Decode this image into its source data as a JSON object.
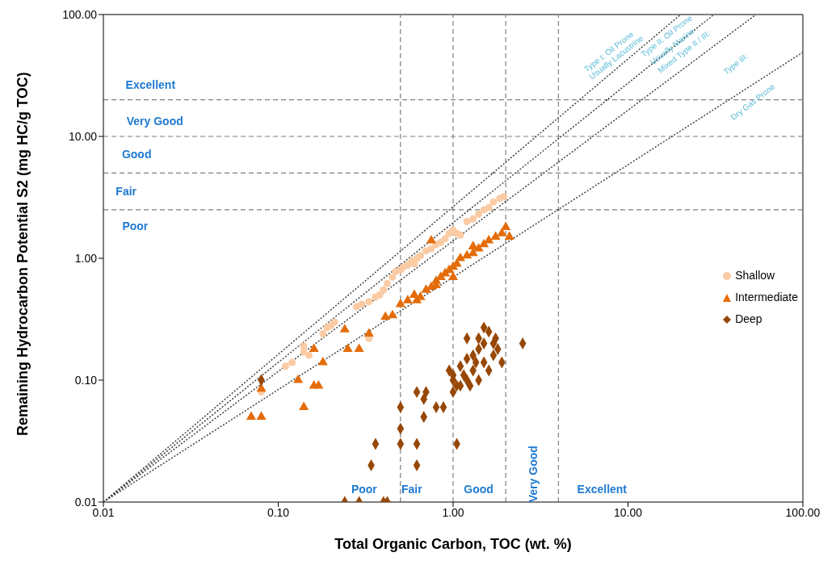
{
  "chart_data": {
    "type": "scatter",
    "xlabel": "Total Organic Carbon, TOC (wt. %)",
    "ylabel": "Remaining Hydrocarbon Potential S2 (mg HC/g TOC)",
    "log": "xy",
    "legend": "right",
    "xlim": [
      0.01,
      100
    ],
    "ylim": [
      0.01,
      100
    ],
    "xticks": [
      {
        "value": 0.01,
        "label": "0.01"
      },
      {
        "value": 0.1,
        "label": "0.10"
      },
      {
        "value": 1,
        "label": "1.00"
      },
      {
        "value": 10,
        "label": "10.00"
      },
      {
        "value": 100,
        "label": "100.00"
      }
    ],
    "yticks": [
      {
        "value": 0.01,
        "label": "0.01"
      },
      {
        "value": 0.1,
        "label": "0.10"
      },
      {
        "value": 1,
        "label": "1.00"
      },
      {
        "value": 10,
        "label": "10.00"
      },
      {
        "value": 100,
        "label": "100.00"
      }
    ],
    "series": [
      {
        "type": "line",
        "color": "#404040",
        "line_style": "dotted",
        "marker": "none",
        "x": [
          0.01,
          20
        ],
        "values": [
          0.01,
          100
        ]
      },
      {
        "type": "line",
        "color": "#404040",
        "line_style": "dotted",
        "marker": "none",
        "x": [
          0.01,
          31
        ],
        "values": [
          0.01,
          100
        ]
      },
      {
        "type": "line",
        "color": "#404040",
        "line_style": "dotted",
        "marker": "none",
        "x": [
          0.01,
          54
        ],
        "values": [
          0.01,
          100
        ]
      },
      {
        "type": "line",
        "color": "#404040",
        "line_style": "dotted",
        "marker": "none",
        "x": [
          0.01,
          100
        ],
        "values": [
          0.01,
          49
        ]
      },
      {
        "name": "Shallow",
        "color": "#fbcba4",
        "marker": "circle",
        "x": [
          0.08,
          0.11,
          0.12,
          0.14,
          0.14,
          0.15,
          0.18,
          0.19,
          0.2,
          0.21,
          0.33,
          0.28,
          0.3,
          0.33,
          0.36,
          0.38,
          0.4,
          0.42,
          0.45,
          0.47,
          0.5,
          0.52,
          0.55,
          0.58,
          0.6,
          0.62,
          0.65,
          0.7,
          0.75,
          0.8,
          0.85,
          0.9,
          0.95,
          1.0,
          1.05,
          1.1,
          1.2,
          1.3,
          1.4,
          1.5,
          1.6,
          1.7,
          1.85,
          1.95
        ],
        "values": [
          0.08,
          0.13,
          0.14,
          0.17,
          0.19,
          0.16,
          0.24,
          0.27,
          0.28,
          0.3,
          0.22,
          0.4,
          0.42,
          0.44,
          0.48,
          0.5,
          0.55,
          0.62,
          0.7,
          0.78,
          0.8,
          0.85,
          0.88,
          0.95,
          0.9,
          1.0,
          1.05,
          1.15,
          1.2,
          1.3,
          1.35,
          1.45,
          1.6,
          1.7,
          1.6,
          1.55,
          2.0,
          2.1,
          2.3,
          2.5,
          2.6,
          2.9,
          3.1,
          3.2
        ]
      },
      {
        "name": "Intermediate",
        "color": "#e46c0a",
        "marker": "triangle",
        "x": [
          0.07,
          0.08,
          0.08,
          0.13,
          0.14,
          0.16,
          0.17,
          0.16,
          0.18,
          0.24,
          0.25,
          0.29,
          0.33,
          0.41,
          0.45,
          0.5,
          0.55,
          0.6,
          0.62,
          0.65,
          0.7,
          0.75,
          0.8,
          0.85,
          0.9,
          0.95,
          1.0,
          1.05,
          1.1,
          1.2,
          1.3,
          1.4,
          1.5,
          1.6,
          1.75,
          1.9,
          2.0,
          2.1,
          0.75,
          1.0,
          0.8,
          1.3
        ],
        "values": [
          0.05,
          0.05,
          0.085,
          0.1,
          0.06,
          0.09,
          0.09,
          0.18,
          0.14,
          0.26,
          0.18,
          0.18,
          0.24,
          0.33,
          0.34,
          0.42,
          0.45,
          0.5,
          0.45,
          0.48,
          0.55,
          0.58,
          0.65,
          0.7,
          0.75,
          0.8,
          0.85,
          0.9,
          1.0,
          1.05,
          1.1,
          1.2,
          1.3,
          1.4,
          1.5,
          1.6,
          1.8,
          1.5,
          1.4,
          0.7,
          0.6,
          1.25
        ]
      },
      {
        "name": "Deep",
        "color": "#974706",
        "marker": "diamond",
        "x": [
          0.08,
          0.24,
          0.29,
          0.4,
          0.42,
          0.34,
          0.36,
          0.5,
          0.5,
          0.5,
          0.62,
          0.62,
          0.68,
          0.62,
          0.68,
          0.7,
          0.8,
          0.88,
          1.05,
          1.0,
          1.0,
          0.95,
          1.1,
          1.2,
          1.3,
          1.1,
          1.2,
          1.4,
          1.5,
          1.3,
          1.5,
          1.6,
          1.7,
          1.8,
          1.9,
          1.6,
          1.5,
          1.4,
          1.2,
          1.0,
          1.25,
          1.4,
          1.75,
          2.5,
          1.05,
          1.15,
          1.35,
          1.7
        ],
        "values": [
          0.1,
          0.01,
          0.01,
          0.01,
          0.01,
          0.02,
          0.03,
          0.06,
          0.04,
          0.03,
          0.03,
          0.02,
          0.05,
          0.08,
          0.07,
          0.08,
          0.06,
          0.06,
          0.03,
          0.08,
          0.1,
          0.12,
          0.09,
          0.1,
          0.12,
          0.13,
          0.15,
          0.18,
          0.2,
          0.16,
          0.14,
          0.12,
          0.16,
          0.18,
          0.14,
          0.25,
          0.27,
          0.22,
          0.22,
          0.11,
          0.09,
          0.1,
          0.22,
          0.2,
          0.09,
          0.11,
          0.14,
          0.2
        ]
      }
    ],
    "ref_lines": [
      {
        "axis": "y",
        "value": 2.5,
        "color": "#808080",
        "line_style": "dashed"
      },
      {
        "axis": "y",
        "value": 5,
        "color": "#808080",
        "line_style": "dashed"
      },
      {
        "axis": "y",
        "value": 10,
        "color": "#808080",
        "line_style": "dashed"
      },
      {
        "axis": "y",
        "value": 20,
        "color": "#808080",
        "line_style": "dashed"
      },
      {
        "axis": "x",
        "value": 0.5,
        "color": "#808080",
        "line_style": "dashed"
      },
      {
        "axis": "x",
        "value": 1,
        "color": "#808080",
        "line_style": "dashed"
      },
      {
        "axis": "x",
        "value": 2,
        "color": "#808080",
        "line_style": "dashed"
      },
      {
        "axis": "x",
        "value": 4,
        "color": "#808080",
        "line_style": "dashed"
      }
    ],
    "annotations": [
      "Excellent",
      "Very Good",
      "Good",
      "Fair",
      "Poor",
      "Poor",
      "Fair",
      "Good",
      "Very Good",
      "Excellent",
      "Type I: Oil Prone",
      "Usually Lacustrine",
      "Type II: Oil Prone",
      "Usually Marine",
      "Mixed Type II / III:",
      "Type III:",
      "Dry Gas Prone"
    ]
  }
}
